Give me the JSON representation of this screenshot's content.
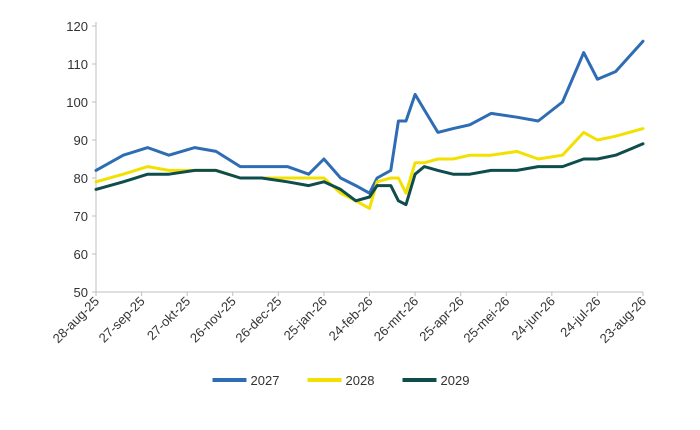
{
  "chart_data": {
    "type": "line",
    "title": "",
    "xlabel": "",
    "ylabel": "",
    "ylim": [
      50,
      120
    ],
    "yticks": [
      50,
      60,
      70,
      80,
      90,
      100,
      110,
      120
    ],
    "grid": false,
    "legend": "bottom",
    "x_tick_labels": [
      "28-aug-25",
      "27-sep-25",
      "27-okt-25",
      "26-nov-25",
      "26-dec-25",
      "25-jan-26",
      "24-feb-26",
      "26-mrt-26",
      "25-apr-26",
      "25-mei-26",
      "24-jun-26",
      "24-jul-26",
      "23-aug-26"
    ],
    "x_dates": [
      "2025-08-28",
      "2025-09-15",
      "2025-10-01",
      "2025-10-15",
      "2025-11-01",
      "2025-11-15",
      "2025-12-01",
      "2025-12-15",
      "2026-01-01",
      "2026-01-15",
      "2026-01-25",
      "2026-02-05",
      "2026-02-15",
      "2026-02-24",
      "2026-03-01",
      "2026-03-10",
      "2026-03-15",
      "2026-03-20",
      "2026-03-26",
      "2026-04-01",
      "2026-04-10",
      "2026-04-20",
      "2026-05-01",
      "2026-05-15",
      "2026-06-01",
      "2026-06-15",
      "2026-07-01",
      "2026-07-15",
      "2026-07-24",
      "2026-08-05",
      "2026-08-23"
    ],
    "series": [
      {
        "name": "2027",
        "color": "#2e6db4",
        "values": [
          82,
          86,
          88,
          86,
          88,
          87,
          83,
          83,
          83,
          81,
          85,
          80,
          78,
          76,
          80,
          82,
          95,
          95,
          102,
          98,
          92,
          93,
          94,
          97,
          96,
          95,
          100,
          113,
          106,
          108,
          116
        ]
      },
      {
        "name": "2028",
        "color": "#f2e100",
        "values": [
          79,
          81,
          83,
          82,
          82,
          82,
          80,
          80,
          80,
          80,
          80,
          76,
          74,
          72,
          79,
          80,
          80,
          76,
          84,
          84,
          85,
          85,
          86,
          86,
          87,
          85,
          86,
          92,
          90,
          91,
          93
        ]
      },
      {
        "name": "2029",
        "color": "#0f4d4d",
        "values": [
          77,
          79,
          81,
          81,
          82,
          82,
          80,
          80,
          79,
          78,
          79,
          77,
          74,
          75,
          78,
          78,
          74,
          73,
          81,
          83,
          82,
          81,
          81,
          82,
          82,
          83,
          83,
          85,
          85,
          86,
          89
        ]
      }
    ]
  }
}
